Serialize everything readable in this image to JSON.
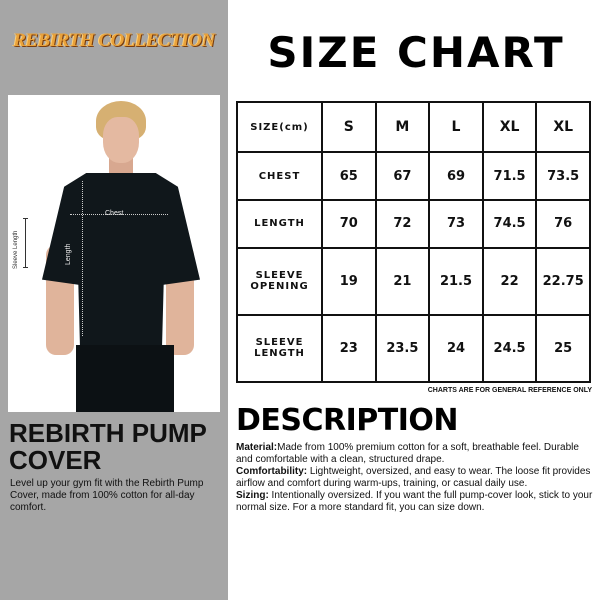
{
  "brand": {
    "logo_text": "REBIRTH COLLECTION",
    "logo_colors": [
      "#e9a23b",
      "#7a3d0c"
    ]
  },
  "photo": {
    "labels": {
      "chest": "Chest",
      "length": "Length",
      "sleeve_length": "Sleeve Length"
    }
  },
  "product": {
    "name": "REBIRTH PUMP COVER",
    "description": "Level up your gym fit with the Rebirth Pump Cover, made from 100% cotton for all-day comfort."
  },
  "size_chart": {
    "title": "SIZE CHART",
    "header": [
      "SIZE(cm)",
      "S",
      "M",
      "L",
      "XL",
      "XL"
    ],
    "rows": [
      {
        "label": "CHEST",
        "values": [
          "65",
          "67",
          "69",
          "71.5",
          "73.5"
        ]
      },
      {
        "label": "LENGTH",
        "values": [
          "70",
          "72",
          "73",
          "74.5",
          "76"
        ]
      },
      {
        "label": "SLEEVE OPENING",
        "values": [
          "19",
          "21",
          "21.5",
          "22",
          "22.75"
        ]
      },
      {
        "label": "SLEEVE LENGTH",
        "values": [
          "23",
          "23.5",
          "24",
          "24.5",
          "25"
        ]
      }
    ],
    "note": "CHARTS ARE FOR GENERAL REFERENCE ONLY"
  },
  "description": {
    "title": "DESCRIPTION",
    "items": [
      {
        "label": "Material:",
        "text": "Made from 100% premium cotton for a soft, breathable feel. Durable and comfortable with a clean, structured drape."
      },
      {
        "label": "Comfortability:",
        "text": " Lightweight, oversized, and easy to wear. The loose fit provides airflow and comfort during warm-ups, training, or casual daily use."
      },
      {
        "label": "Sizing:",
        "text": " Intentionally oversized. If you want the full pump-cover look, stick to your normal size. For a more standard fit, you can size down."
      }
    ]
  },
  "colors": {
    "left_panel": "#a6a6a6",
    "text": "#111111"
  }
}
